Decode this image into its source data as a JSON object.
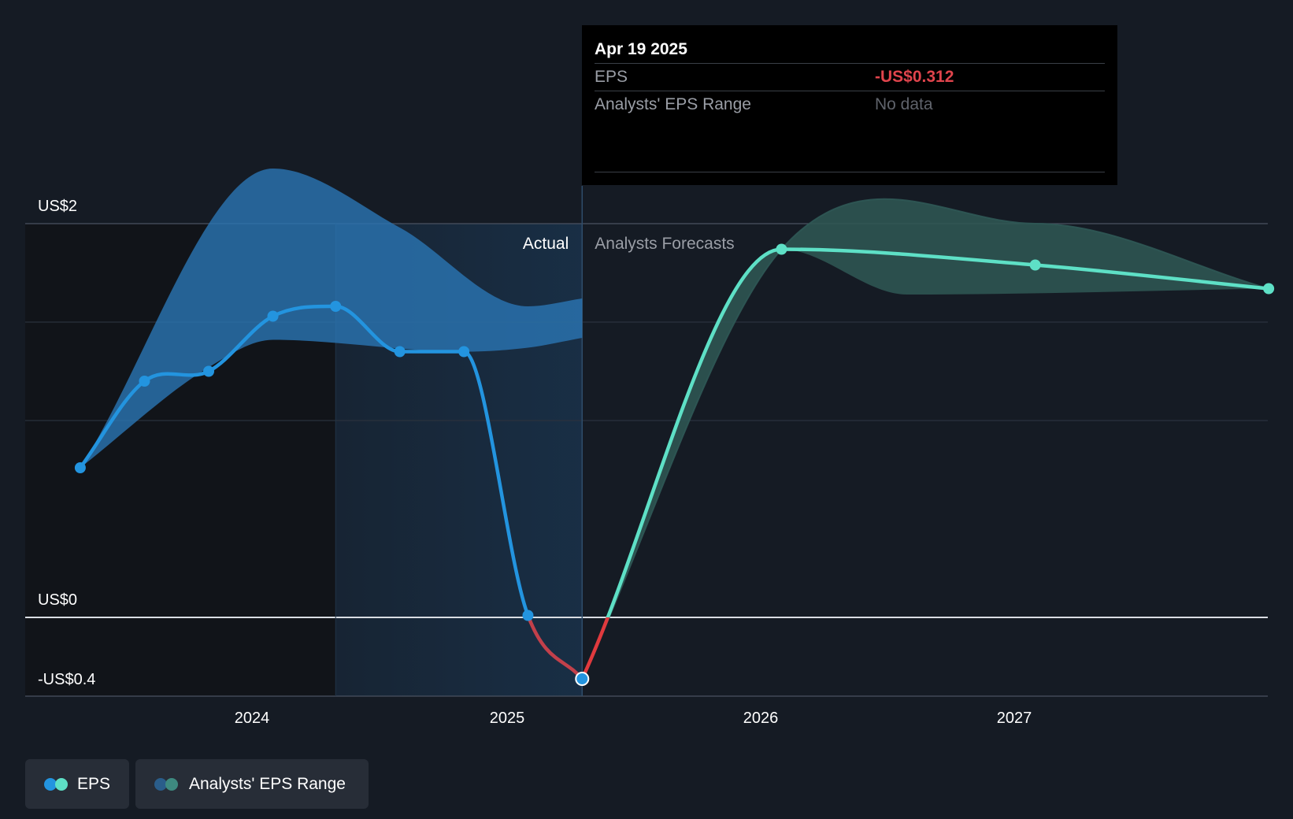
{
  "chart_data": {
    "type": "line",
    "y_ticks": [
      {
        "label": "US$2",
        "value": 2
      },
      {
        "label": "US$0",
        "value": 0
      },
      {
        "label": "-US$0.4",
        "value": -0.4
      }
    ],
    "x_ticks": [
      "2024",
      "2025",
      "2026",
      "2027"
    ],
    "ylim": [
      -0.4,
      2.0
    ],
    "grid": true,
    "sections": {
      "actual": "Actual",
      "forecast": "Analysts Forecasts"
    },
    "series": [
      {
        "name": "EPS",
        "kind": "actual",
        "color": "#2394df",
        "negative_color": "#e0444c",
        "points": [
          {
            "x": "2023-04-30",
            "y": 0.76
          },
          {
            "x": "2023-07-31",
            "y": 1.2
          },
          {
            "x": "2023-10-31",
            "y": 1.25
          },
          {
            "x": "2024-01-31",
            "y": 1.53
          },
          {
            "x": "2024-04-30",
            "y": 1.58
          },
          {
            "x": "2024-07-31",
            "y": 1.35
          },
          {
            "x": "2024-10-31",
            "y": 1.35
          },
          {
            "x": "2025-01-31",
            "y": 0.01
          },
          {
            "x": "2025-04-19",
            "y": -0.312
          }
        ]
      },
      {
        "name": "EPS",
        "kind": "forecast",
        "color": "#5ee0c6",
        "negative_color": "#e03a3e",
        "points": [
          {
            "x": "2025-04-19",
            "y": -0.312
          },
          {
            "x": "2026-01-31",
            "y": 1.87
          },
          {
            "x": "2027-01-31",
            "y": 1.79
          },
          {
            "x": "2027-12-31",
            "y": 1.67
          }
        ]
      }
    ],
    "ranges": [
      {
        "name": "Analysts' EPS Range",
        "kind": "actual",
        "color": "#2a76b4",
        "upper": [
          {
            "x": "2023-04-30",
            "y": 0.76
          },
          {
            "x": "2024-01-31",
            "y": 2.28
          },
          {
            "x": "2024-07-31",
            "y": 1.98
          },
          {
            "x": "2025-01-31",
            "y": 1.58
          },
          {
            "x": "2025-04-19",
            "y": 1.62
          }
        ],
        "lower": [
          {
            "x": "2023-04-30",
            "y": 0.76
          },
          {
            "x": "2023-10-31",
            "y": 1.27
          },
          {
            "x": "2024-01-31",
            "y": 1.41
          },
          {
            "x": "2024-10-31",
            "y": 1.35
          },
          {
            "x": "2025-01-31",
            "y": 1.37
          },
          {
            "x": "2025-04-19",
            "y": 1.42
          }
        ]
      },
      {
        "name": "Analysts' EPS Range",
        "kind": "forecast",
        "color": "#2f5855",
        "upper": [
          {
            "x": "2025-04-19",
            "y": -0.312
          },
          {
            "x": "2026-01-31",
            "y": 1.87
          },
          {
            "x": "2027-01-31",
            "y": 2.0
          },
          {
            "x": "2027-12-31",
            "y": 1.67
          }
        ],
        "lower": [
          {
            "x": "2025-04-19",
            "y": -0.312
          },
          {
            "x": "2026-01-31",
            "y": 1.87
          },
          {
            "x": "2026-07-31",
            "y": 1.64
          },
          {
            "x": "2027-12-31",
            "y": 1.67
          }
        ]
      }
    ],
    "tooltip": {
      "date": "Apr 19 2025",
      "eps_label": "EPS",
      "eps_value": "-US$0.312",
      "eps_value_color": "#e0444c",
      "range_label": "Analysts' EPS Range",
      "range_value": "No data"
    },
    "legend": [
      {
        "label": "EPS",
        "colors": [
          "#2394df",
          "#5ee0c6"
        ]
      },
      {
        "label": "Analysts' EPS Range",
        "colors": [
          "#2a5d8a",
          "#3e8a80"
        ]
      }
    ]
  }
}
